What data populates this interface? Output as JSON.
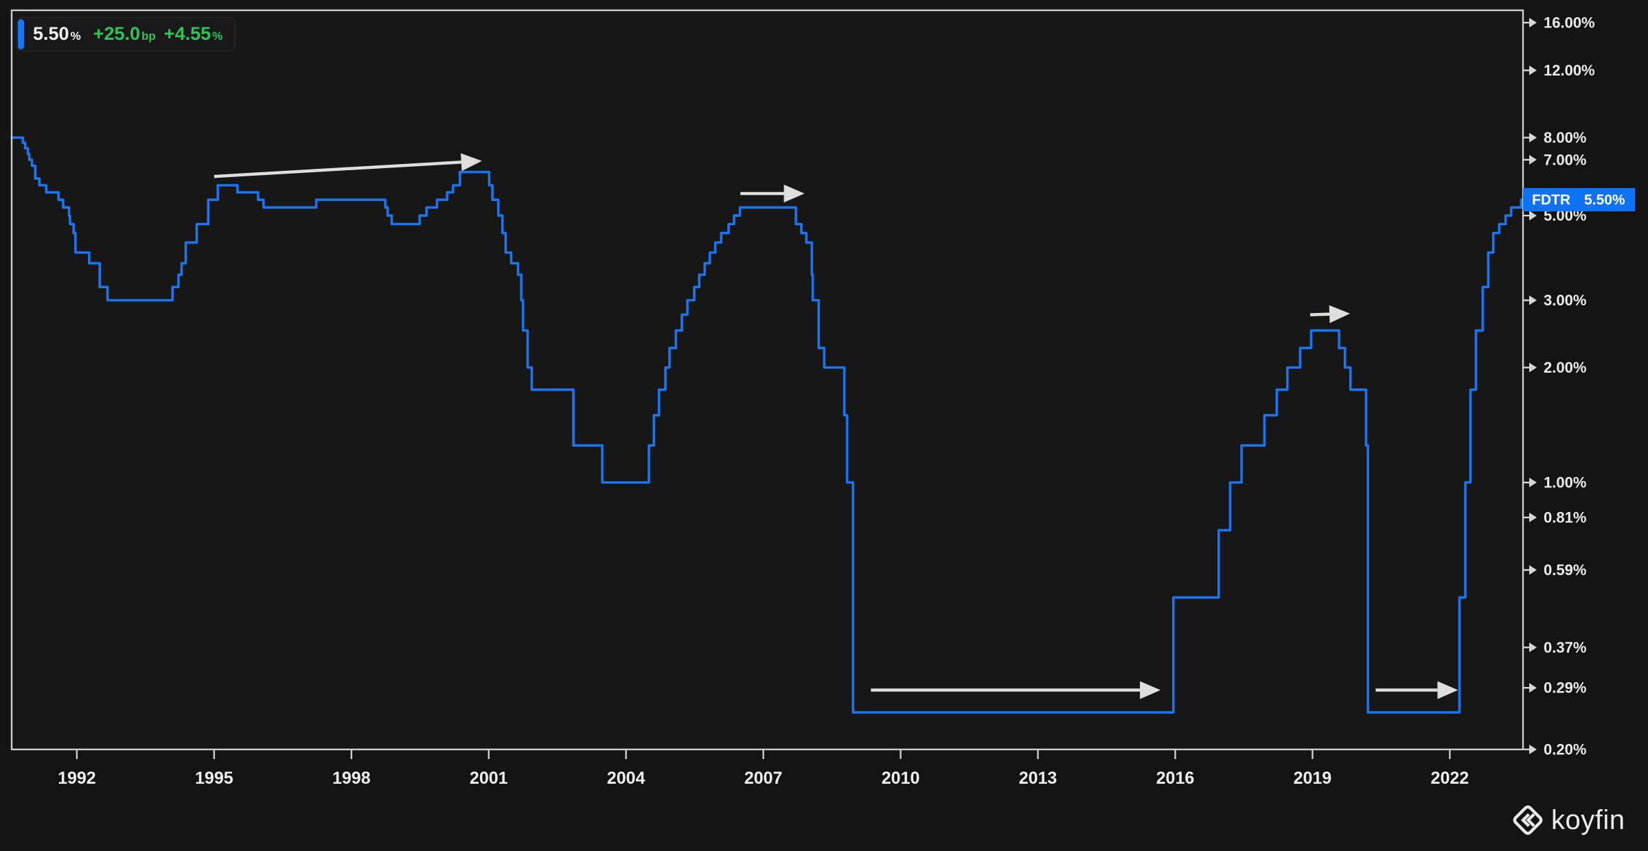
{
  "legend": {
    "last_value": "5.50",
    "last_value_unit": "%",
    "change_bp": "+25.0",
    "change_bp_unit": "bp",
    "change_pct": "+4.55",
    "change_pct_unit": "%"
  },
  "price_badge": {
    "ticker": "FDTR",
    "value": "5.50%"
  },
  "watermark": {
    "brand": "koyfin"
  },
  "colors": {
    "background": "#141415",
    "plot_bg": "#171718",
    "panel": "#19191b",
    "line": "#1b75f0",
    "badge": "#0f72f3",
    "accent": "#1b75f0",
    "green": "#2fc457",
    "axis": "#cfcfcf",
    "tick_arrow": "#d6d6d6",
    "label_text": "#ededed",
    "arrow": "#dedede"
  },
  "chart_data": {
    "type": "line",
    "ticker": "FDTR",
    "last_value_pct": 5.5,
    "y_scale": "log",
    "y_unit": "%",
    "legend_position": "top-left",
    "grid": false,
    "x_domain": [
      1990.576,
      2023.6
    ],
    "y_domain": [
      0.2,
      16.0
    ],
    "x_ticks": [
      1992,
      1995,
      1998,
      2001,
      2004,
      2007,
      2010,
      2013,
      2016,
      2019,
      2022
    ],
    "y_ticks": [
      {
        "label": "16.00%",
        "value": 16.0
      },
      {
        "label": "12.00%",
        "value": 12.0
      },
      {
        "label": "8.00%",
        "value": 8.0
      },
      {
        "label": "7.00%",
        "value": 7.0
      },
      {
        "label": "5.00%",
        "value": 5.0
      },
      {
        "label": "3.00%",
        "value": 3.0
      },
      {
        "label": "2.00%",
        "value": 2.0
      },
      {
        "label": "1.00%",
        "value": 1.0
      },
      {
        "label": "0.81%",
        "value": 0.81
      },
      {
        "label": "0.59%",
        "value": 0.59
      },
      {
        "label": "0.37%",
        "value": 0.37
      },
      {
        "label": "0.29%",
        "value": 0.29
      },
      {
        "label": "0.20%",
        "value": 0.2
      }
    ],
    "series": [
      {
        "name": "FDTR",
        "step": "after",
        "points": [
          [
            1990.576,
            8.0
          ],
          [
            1990.82,
            7.75
          ],
          [
            1990.87,
            7.5
          ],
          [
            1990.93,
            7.25
          ],
          [
            1990.96,
            7.0
          ],
          [
            1991.02,
            6.75
          ],
          [
            1991.09,
            6.25
          ],
          [
            1991.18,
            6.0
          ],
          [
            1991.33,
            5.75
          ],
          [
            1991.6,
            5.5
          ],
          [
            1991.7,
            5.25
          ],
          [
            1991.83,
            5.0
          ],
          [
            1991.85,
            4.75
          ],
          [
            1991.93,
            4.5
          ],
          [
            1991.97,
            4.0
          ],
          [
            1992.27,
            3.75
          ],
          [
            1992.5,
            3.25
          ],
          [
            1992.67,
            3.0
          ],
          [
            1994.09,
            3.25
          ],
          [
            1994.22,
            3.5
          ],
          [
            1994.29,
            3.75
          ],
          [
            1994.38,
            4.25
          ],
          [
            1994.62,
            4.75
          ],
          [
            1994.87,
            5.5
          ],
          [
            1995.08,
            6.0
          ],
          [
            1995.51,
            5.75
          ],
          [
            1995.96,
            5.5
          ],
          [
            1996.08,
            5.25
          ],
          [
            1997.23,
            5.5
          ],
          [
            1998.74,
            5.25
          ],
          [
            1998.79,
            5.0
          ],
          [
            1998.88,
            4.75
          ],
          [
            1999.49,
            5.0
          ],
          [
            1999.64,
            5.25
          ],
          [
            1999.87,
            5.5
          ],
          [
            2000.09,
            5.75
          ],
          [
            2000.22,
            6.0
          ],
          [
            2000.37,
            6.5
          ],
          [
            2001.01,
            6.0
          ],
          [
            2001.08,
            5.5
          ],
          [
            2001.21,
            5.0
          ],
          [
            2001.3,
            4.5
          ],
          [
            2001.37,
            4.0
          ],
          [
            2001.49,
            3.75
          ],
          [
            2001.64,
            3.5
          ],
          [
            2001.71,
            3.0
          ],
          [
            2001.75,
            2.5
          ],
          [
            2001.85,
            2.0
          ],
          [
            2001.94,
            1.75
          ],
          [
            2002.85,
            1.25
          ],
          [
            2003.48,
            1.0
          ],
          [
            2004.5,
            1.25
          ],
          [
            2004.61,
            1.5
          ],
          [
            2004.72,
            1.75
          ],
          [
            2004.86,
            2.0
          ],
          [
            2004.95,
            2.25
          ],
          [
            2005.09,
            2.5
          ],
          [
            2005.22,
            2.75
          ],
          [
            2005.34,
            3.0
          ],
          [
            2005.49,
            3.25
          ],
          [
            2005.6,
            3.5
          ],
          [
            2005.72,
            3.75
          ],
          [
            2005.83,
            4.0
          ],
          [
            2005.95,
            4.25
          ],
          [
            2006.08,
            4.5
          ],
          [
            2006.24,
            4.75
          ],
          [
            2006.36,
            5.0
          ],
          [
            2006.49,
            5.25
          ],
          [
            2007.71,
            4.75
          ],
          [
            2007.83,
            4.5
          ],
          [
            2007.94,
            4.25
          ],
          [
            2008.06,
            3.5
          ],
          [
            2008.08,
            3.0
          ],
          [
            2008.21,
            2.25
          ],
          [
            2008.33,
            2.0
          ],
          [
            2008.77,
            1.5
          ],
          [
            2008.83,
            1.0
          ],
          [
            2008.96,
            0.25
          ],
          [
            2015.96,
            0.5
          ],
          [
            2016.95,
            0.75
          ],
          [
            2017.2,
            1.0
          ],
          [
            2017.45,
            1.25
          ],
          [
            2017.95,
            1.5
          ],
          [
            2018.22,
            1.75
          ],
          [
            2018.45,
            2.0
          ],
          [
            2018.73,
            2.25
          ],
          [
            2018.97,
            2.5
          ],
          [
            2019.58,
            2.25
          ],
          [
            2019.71,
            2.0
          ],
          [
            2019.83,
            1.75
          ],
          [
            2020.17,
            1.25
          ],
          [
            2020.21,
            0.25
          ],
          [
            2022.21,
            0.5
          ],
          [
            2022.34,
            1.0
          ],
          [
            2022.45,
            1.75
          ],
          [
            2022.57,
            2.5
          ],
          [
            2022.72,
            3.25
          ],
          [
            2022.84,
            4.0
          ],
          [
            2022.95,
            4.5
          ],
          [
            2023.08,
            4.75
          ],
          [
            2023.22,
            5.0
          ],
          [
            2023.34,
            5.25
          ],
          [
            2023.56,
            5.5
          ]
        ]
      }
    ],
    "annotations": [
      {
        "type": "arrow",
        "from": [
          1995.0,
          6.33
        ],
        "to": [
          2000.85,
          6.95
        ]
      },
      {
        "type": "arrow",
        "from": [
          2006.5,
          5.71
        ],
        "to": [
          2007.9,
          5.71
        ]
      },
      {
        "type": "arrow",
        "from": [
          2018.95,
          2.75
        ],
        "to": [
          2019.82,
          2.77
        ]
      },
      {
        "type": "arrow",
        "from": [
          2009.35,
          0.286
        ],
        "to": [
          2015.68,
          0.286
        ]
      },
      {
        "type": "arrow",
        "from": [
          2020.38,
          0.286
        ],
        "to": [
          2022.18,
          0.286
        ]
      }
    ]
  }
}
